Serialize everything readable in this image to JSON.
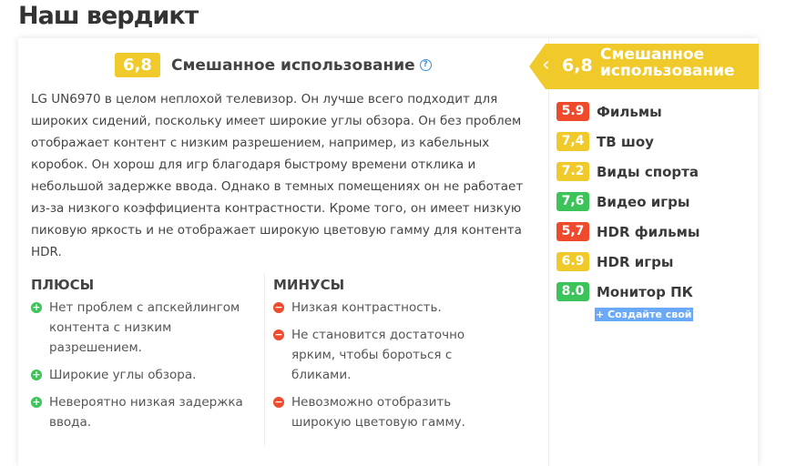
{
  "title": "Наш вердикт",
  "usage": {
    "score": "6,8",
    "label": "Смешанное использование",
    "help_icon": "question-circle-icon",
    "color": "#f0c92a"
  },
  "description": "LG UN6970 в целом неплохой телевизор. Он лучше всего подходит для широких сидений, поскольку имеет широкие углы обзора. Он без проблем отображает контент с низким разрешением, например, из кабельных коробок. Он хорош для игр благодаря быстрому времени отклика и небольшой задержке ввода. Однако в темных помещениях он не работает из-за низкого коэффициента контрастности. Кроме того, он имеет низкую пиковую яркость и не отображает широкую цветовую гамму для контента HDR.",
  "pros": {
    "heading": "ПЛЮСЫ",
    "items": [
      "Нет проблем с апскейлингом контента с низким разрешением.",
      "Широкие углы обзора.",
      "Невероятно низкая задержка ввода."
    ],
    "color": "#3cc45a"
  },
  "cons": {
    "heading": "МИНУСЫ",
    "items": [
      "Низкая контрастность.",
      "Не становится достаточно ярким, чтобы бороться с бликами.",
      "Невозможно отобразить широкую цветовую гамму."
    ],
    "color": "#ef4a2b"
  },
  "side": {
    "banner": {
      "score": "6,8",
      "label": "Смешанное использование"
    },
    "ratings": [
      {
        "score": "5.9",
        "label": "Фильмы",
        "color": "#ef4a2b"
      },
      {
        "score": "7,4",
        "label": "ТВ шоу",
        "color": "#f0c92a"
      },
      {
        "score": "7.2",
        "label": "Виды спорта",
        "color": "#f0c92a"
      },
      {
        "score": "7,6",
        "label": "Видео игры",
        "color": "#3cc45a"
      },
      {
        "score": "5,7",
        "label": "HDR фильмы",
        "color": "#ef4a2b"
      },
      {
        "score": "6.9",
        "label": "HDR игры",
        "color": "#f0c92a"
      },
      {
        "score": "8.0",
        "label": "Монитор ПК",
        "color": "#3cc45a"
      }
    ],
    "create_label": "+ Создайте свой"
  }
}
